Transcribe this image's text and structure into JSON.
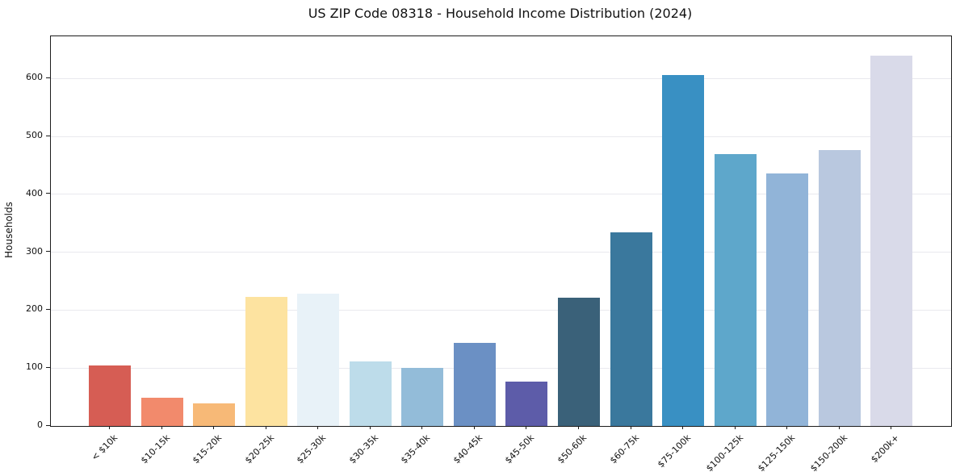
{
  "chart_data": {
    "type": "bar",
    "title": "US ZIP Code 08318 - Household Income Distribution (2024)",
    "xlabel": "",
    "ylabel": "Households",
    "categories": [
      "< $10k",
      "$10-15k",
      "$15-20k",
      "$20-25k",
      "$25-30k",
      "$30-35k",
      "$35-40k",
      "$40-45k",
      "$45-50k",
      "$50-60k",
      "$60-75k",
      "$75-100k",
      "$100-125k",
      "$125-150k",
      "$150-200k",
      "$200k+"
    ],
    "values": [
      105,
      49,
      39,
      223,
      228,
      111,
      101,
      144,
      76,
      222,
      335,
      606,
      470,
      436,
      477,
      639
    ],
    "bar_colors": [
      "#d65d54",
      "#f28a6c",
      "#f7b977",
      "#fde3a0",
      "#e8f2f8",
      "#bddcea",
      "#93bcd9",
      "#6b90c4",
      "#5d5ca9",
      "#3a6179",
      "#3a789d",
      "#3990c3",
      "#5ea7cb",
      "#91b4d8",
      "#b9c8df",
      "#d9dae9"
    ],
    "yticks": [
      0,
      100,
      200,
      300,
      400,
      500,
      600
    ],
    "ylim": [
      0,
      673
    ],
    "grid": "horizontal",
    "legend": "none",
    "colors": {
      "spine": "#1c1c1c",
      "gridline": "#e9e9ee",
      "text": "#111111",
      "background": "#ffffff"
    }
  }
}
